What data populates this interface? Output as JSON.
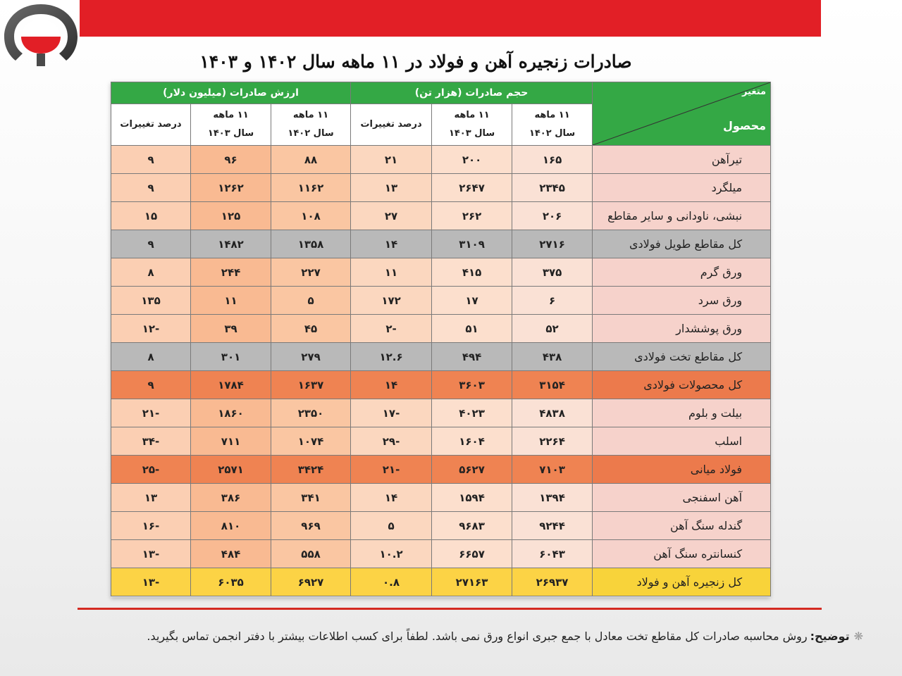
{
  "header": {
    "title": "صادرات زنجیره آهن و فولاد در ۱۱ ماهه سال ۱۴۰۲ و ۱۴۰۳"
  },
  "brand": {
    "accent": "#e21f26",
    "logo": "association-logo-icon"
  },
  "table": {
    "corner": {
      "variable_label": "متغیر",
      "product_label": "محصول"
    },
    "groups": [
      {
        "label": "حجم صادرات (هزار تن)",
        "color": "#34a845"
      },
      {
        "label": "ارزش صادرات (میلیون دلار)",
        "color": "#34a845"
      }
    ],
    "columns": [
      {
        "line1": "۱۱ ماهه",
        "line2": "سال ۱۴۰۲"
      },
      {
        "line1": "۱۱ ماهه",
        "line2": "سال ۱۴۰۳"
      },
      {
        "line1": "درصد تغییرات",
        "line2": ""
      },
      {
        "line1": "۱۱ ماهه",
        "line2": "سال ۱۴۰۲"
      },
      {
        "line1": "۱۱ ماهه",
        "line2": "سال ۱۴۰۳"
      },
      {
        "line1": "درصد تغییرات",
        "line2": ""
      }
    ],
    "rows": [
      {
        "product": "تیرآهن",
        "style": "normal",
        "values": [
          "۱۶۵",
          "۲۰۰",
          "۲۱",
          "۸۸",
          "۹۶",
          "۹"
        ]
      },
      {
        "product": "میلگرد",
        "style": "normal",
        "values": [
          "۲۳۴۵",
          "۲۶۴۷",
          "۱۳",
          "۱۱۶۲",
          "۱۲۶۲",
          "۹"
        ]
      },
      {
        "product": "نبشی، ناودانی و سایر مقاطع",
        "style": "normal",
        "values": [
          "۲۰۶",
          "۲۶۲",
          "۲۷",
          "۱۰۸",
          "۱۲۵",
          "۱۵"
        ]
      },
      {
        "product": "کل مقاطع طویل فولادی",
        "style": "gray",
        "values": [
          "۲۷۱۶",
          "۳۱۰۹",
          "۱۴",
          "۱۳۵۸",
          "۱۴۸۲",
          "۹"
        ]
      },
      {
        "product": "ورق گرم",
        "style": "normal",
        "values": [
          "۳۷۵",
          "۴۱۵",
          "۱۱",
          "۲۲۷",
          "۲۴۴",
          "۸"
        ]
      },
      {
        "product": "ورق سرد",
        "style": "normal",
        "values": [
          "۶",
          "۱۷",
          "۱۷۲",
          "۵",
          "۱۱",
          "۱۳۵"
        ]
      },
      {
        "product": "ورق پوششدار",
        "style": "normal",
        "values": [
          "۵۲",
          "۵۱",
          "-۲",
          "۴۵",
          "۳۹",
          "-۱۲"
        ]
      },
      {
        "product": "کل مقاطع تخت فولادی",
        "style": "gray",
        "values": [
          "۴۳۸",
          "۴۹۴",
          "۱۲.۶",
          "۲۷۹",
          "۳۰۱",
          "۸"
        ]
      },
      {
        "product": "کل محصولات فولادی",
        "style": "orange",
        "values": [
          "۳۱۵۴",
          "۳۶۰۳",
          "۱۴",
          "۱۶۳۷",
          "۱۷۸۴",
          "۹"
        ]
      },
      {
        "product": "بیلت و بلوم",
        "style": "normal",
        "values": [
          "۴۸۳۸",
          "۴۰۲۳",
          "-۱۷",
          "۲۳۵۰",
          "۱۸۶۰",
          "-۲۱"
        ]
      },
      {
        "product": "اسلب",
        "style": "normal",
        "values": [
          "۲۲۶۴",
          "۱۶۰۴",
          "-۲۹",
          "۱۰۷۴",
          "۷۱۱",
          "-۳۴"
        ]
      },
      {
        "product": "فولاد میانی",
        "style": "orange",
        "values": [
          "۷۱۰۳",
          "۵۶۲۷",
          "-۲۱",
          "۳۴۲۴",
          "۲۵۷۱",
          "-۲۵"
        ]
      },
      {
        "product": "آهن اسفنجی",
        "style": "normal",
        "values": [
          "۱۳۹۴",
          "۱۵۹۴",
          "۱۴",
          "۳۴۱",
          "۳۸۶",
          "۱۳"
        ]
      },
      {
        "product": "گندله سنگ آهن",
        "style": "normal",
        "values": [
          "۹۲۴۴",
          "۹۶۸۳",
          "۵",
          "۹۶۹",
          "۸۱۰",
          "-۱۶"
        ]
      },
      {
        "product": "کنسانتره سنگ آهن",
        "style": "normal",
        "values": [
          "۶۰۴۳",
          "۶۶۵۷",
          "۱۰.۲",
          "۵۵۸",
          "۴۸۴",
          "-۱۳"
        ]
      },
      {
        "product": "کل زنجیره آهن و فولاد",
        "style": "yellow",
        "values": [
          "۲۶۹۳۷",
          "۲۷۱۶۳",
          "۰.۸",
          "۶۹۲۷",
          "۶۰۳۵",
          "-۱۳"
        ]
      }
    ]
  },
  "footnote": {
    "marker": "❋",
    "label": "توضیح:",
    "text": "روش محاسبه صادرات کل مقاطع تخت معادل با جمع جبری انواع ورق نمی باشد. لطفاً برای کسب اطلاعات بیشتر با دفتر انجمن تماس بگیرید."
  }
}
